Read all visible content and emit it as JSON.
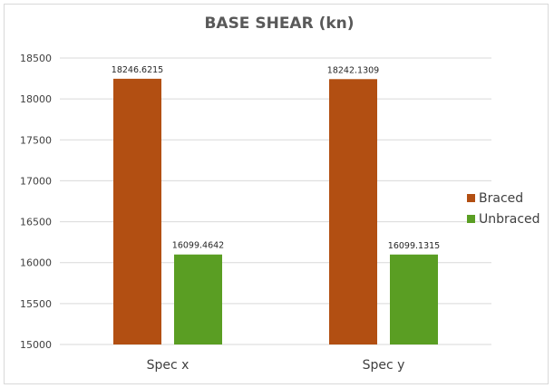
{
  "chart_data": {
    "type": "bar",
    "title": "BASE SHEAR (kn)",
    "xlabel": "",
    "ylabel": "",
    "categories": [
      "Spec x",
      "Spec y"
    ],
    "series": [
      {
        "name": "Braced",
        "values": [
          18246.6215,
          18242.1309
        ],
        "labels": [
          "18246.6215",
          "18242.1309"
        ],
        "color": "#b24f12"
      },
      {
        "name": "Unbraced",
        "values": [
          16099.4642,
          16099.1315
        ],
        "labels": [
          "16099.4642",
          "16099.1315"
        ],
        "color": "#5a9e23"
      }
    ],
    "ylim": [
      15000,
      18500
    ],
    "yticks": [
      15000,
      15500,
      16000,
      16500,
      17000,
      17500,
      18000,
      18500
    ],
    "grid": true,
    "legend": "right"
  },
  "colors": {
    "grid": "#d9d9d9",
    "axis": "#d9d9d9"
  }
}
